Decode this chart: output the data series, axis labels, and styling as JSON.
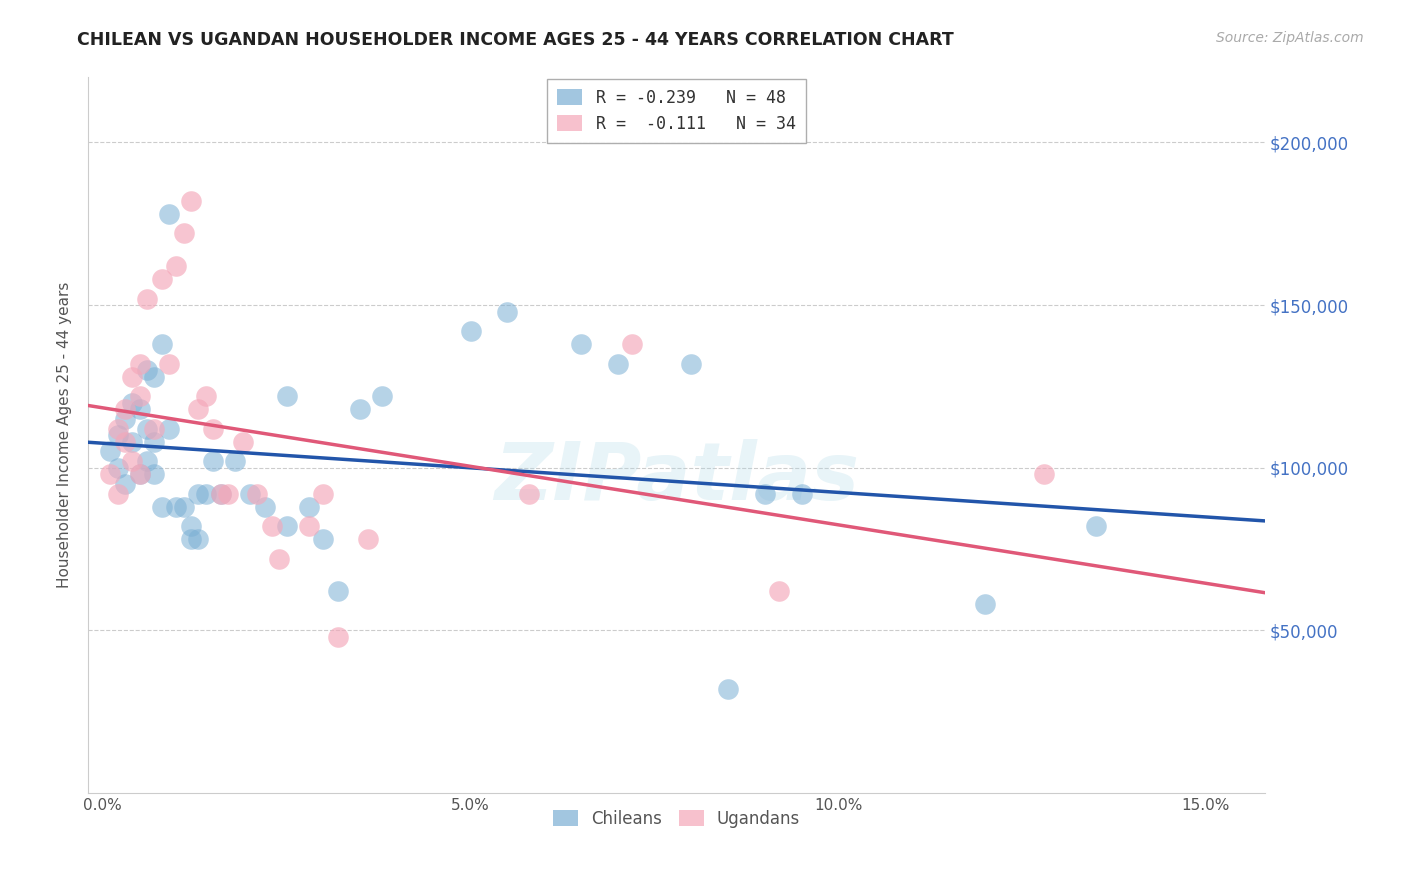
{
  "title": "CHILEAN VS UGANDAN HOUSEHOLDER INCOME AGES 25 - 44 YEARS CORRELATION CHART",
  "source": "Source: ZipAtlas.com",
  "ylabel": "Householder Income Ages 25 - 44 years",
  "xlabel_ticks": [
    "0.0%",
    "5.0%",
    "10.0%",
    "15.0%"
  ],
  "xlabel_vals": [
    0.0,
    0.05,
    0.1,
    0.15
  ],
  "ylim": [
    0,
    220000
  ],
  "xlim": [
    -0.002,
    0.158
  ],
  "yticks": [
    0,
    50000,
    100000,
    150000,
    200000
  ],
  "ytick_labels": [
    "",
    "$50,000",
    "$100,000",
    "$150,000",
    "$200,000"
  ],
  "ytick_color": "#4472c4",
  "chilean_color": "#7bafd4",
  "ugandan_color": "#f4a7b9",
  "trendline_chilean_color": "#2255aa",
  "trendline_ugandan_color": "#e05878",
  "watermark": "ZIPatlas",
  "chileans_x": [
    0.001,
    0.002,
    0.002,
    0.003,
    0.003,
    0.004,
    0.004,
    0.005,
    0.005,
    0.006,
    0.006,
    0.006,
    0.007,
    0.007,
    0.007,
    0.008,
    0.008,
    0.009,
    0.009,
    0.01,
    0.011,
    0.012,
    0.012,
    0.013,
    0.013,
    0.014,
    0.015,
    0.016,
    0.018,
    0.02,
    0.022,
    0.025,
    0.025,
    0.028,
    0.03,
    0.032,
    0.035,
    0.038,
    0.05,
    0.055,
    0.065,
    0.07,
    0.08,
    0.085,
    0.09,
    0.095,
    0.12,
    0.135
  ],
  "chileans_y": [
    105000,
    110000,
    100000,
    115000,
    95000,
    120000,
    108000,
    118000,
    98000,
    130000,
    112000,
    102000,
    128000,
    108000,
    98000,
    88000,
    138000,
    112000,
    178000,
    88000,
    88000,
    78000,
    82000,
    78000,
    92000,
    92000,
    102000,
    92000,
    102000,
    92000,
    88000,
    122000,
    82000,
    88000,
    78000,
    62000,
    118000,
    122000,
    142000,
    148000,
    138000,
    132000,
    132000,
    32000,
    92000,
    92000,
    58000,
    82000
  ],
  "ugandans_x": [
    0.001,
    0.002,
    0.002,
    0.003,
    0.003,
    0.004,
    0.004,
    0.005,
    0.005,
    0.005,
    0.006,
    0.007,
    0.008,
    0.009,
    0.01,
    0.011,
    0.012,
    0.013,
    0.014,
    0.015,
    0.016,
    0.017,
    0.019,
    0.021,
    0.023,
    0.024,
    0.028,
    0.03,
    0.032,
    0.036,
    0.058,
    0.072,
    0.092,
    0.128
  ],
  "ugandans_y": [
    98000,
    92000,
    112000,
    108000,
    118000,
    102000,
    128000,
    122000,
    98000,
    132000,
    152000,
    112000,
    158000,
    132000,
    162000,
    172000,
    182000,
    118000,
    122000,
    112000,
    92000,
    92000,
    108000,
    92000,
    82000,
    72000,
    82000,
    92000,
    48000,
    78000,
    92000,
    138000,
    62000,
    98000
  ]
}
